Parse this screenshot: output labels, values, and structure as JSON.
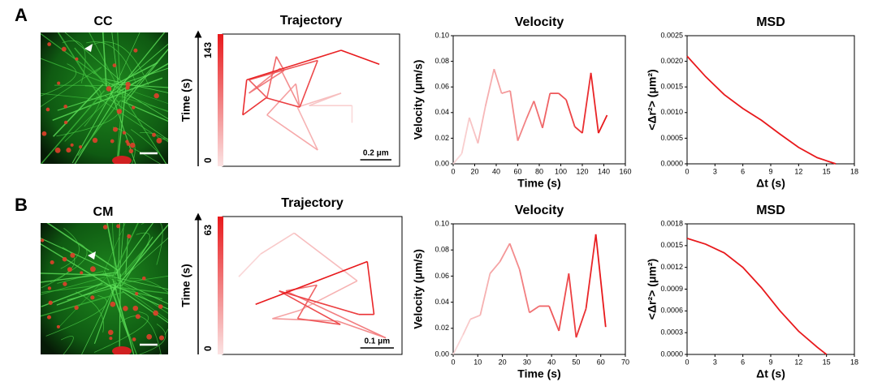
{
  "panels": [
    {
      "label": "A",
      "image_label": "CC"
    },
    {
      "label": "B",
      "image_label": "CM"
    }
  ],
  "chart_data": [
    {
      "type": "trajectory",
      "title": "Trajectory",
      "x": [
        0.76,
        0.76,
        0.485,
        0.69,
        0.41,
        0.54,
        0.215,
        0.4,
        0.425,
        0.3,
        0.1,
        0.325,
        0.275,
        0.215,
        0.1,
        0.54,
        0.425,
        0.21,
        0.06,
        0.085,
        0.69,
        0.935
      ],
      "y": [
        0.275,
        0.385,
        0.385,
        0.465,
        0.375,
        0.1,
        0.325,
        0.525,
        0.375,
        0.625,
        0.465,
        0.61,
        0.7,
        0.435,
        0.55,
        0.675,
        0.375,
        0.435,
        0.325,
        0.55,
        0.74,
        0.65
      ],
      "colormap": [
        "#fbe3e3",
        "#e8191c"
      ],
      "colorbar": {
        "label": "Time (s)",
        "lim": [
          0,
          143
        ],
        "ticks": [
          0,
          143
        ]
      },
      "scale_bar": {
        "label": "0.2 μm",
        "length": 0.2
      }
    },
    {
      "type": "line",
      "title": "Velocity",
      "x_label": "Time (s)",
      "y_label": "Velocity (μm/s)",
      "x": [
        0,
        8,
        15,
        23,
        30,
        38,
        45,
        53,
        60,
        68,
        75,
        83,
        90,
        98,
        105,
        113,
        120,
        128,
        135,
        143
      ],
      "values": [
        0,
        0.008,
        0.036,
        0.016,
        0.045,
        0.074,
        0.055,
        0.057,
        0.018,
        0.035,
        0.049,
        0.028,
        0.055,
        0.055,
        0.05,
        0.029,
        0.024,
        0.071,
        0.024,
        0.038
      ],
      "colormap": [
        "#fbe3e3",
        "#e8191c"
      ],
      "xlim": [
        0,
        160
      ],
      "xticks": [
        0,
        20,
        40,
        60,
        80,
        100,
        120,
        140,
        160
      ],
      "ylim": [
        0,
        0.1
      ],
      "yticks": [
        {
          "value": 0,
          "label": "0.00"
        },
        {
          "value": 0.02,
          "label": "0.02"
        },
        {
          "value": 0.04,
          "label": "0.04"
        },
        {
          "value": 0.06,
          "label": "0.06"
        },
        {
          "value": 0.08,
          "label": "0.08"
        },
        {
          "value": 0.1,
          "label": "0.10"
        }
      ]
    },
    {
      "type": "line",
      "title": "MSD",
      "x_label": "Δt (s)",
      "y_label": "<Δr²> (μm²)",
      "x": [
        0,
        2,
        4,
        6,
        8,
        10,
        12,
        14,
        16
      ],
      "values": [
        0.0021,
        0.0017,
        0.00135,
        0.00108,
        0.00085,
        0.00058,
        0.00032,
        0.00012,
        0
      ],
      "color": "#e8191c",
      "xlim": [
        0,
        18
      ],
      "xticks": [
        0,
        3,
        6,
        9,
        12,
        15,
        18
      ],
      "ylim": [
        0,
        0.0025
      ],
      "yticks": [
        {
          "value": 0,
          "label": "0.0000"
        },
        {
          "value": 0.0005,
          "label": "0.0005"
        },
        {
          "value": 0.001,
          "label": "0.0010"
        },
        {
          "value": 0.0015,
          "label": "0.0015"
        },
        {
          "value": 0.002,
          "label": "0.0020"
        },
        {
          "value": 0.0025,
          "label": "0.0025"
        }
      ]
    },
    {
      "type": "trajectory",
      "title": "Trajectory",
      "x": [
        0.035,
        0.1,
        0.2,
        0.3875,
        0.2175,
        0.135,
        0.33,
        0.4725,
        0.175,
        0.2675,
        0.21,
        0.3375,
        0.155,
        0.3925,
        0.4375,
        0.4175,
        0.085
      ],
      "y": [
        0.23,
        0.2975,
        0.36,
        0.2175,
        0.13,
        0.105,
        0.0975,
        0.0475,
        0.1875,
        0.205,
        0.105,
        0.0875,
        0.1875,
        0.1175,
        0.1175,
        0.275,
        0.1475
      ],
      "colormap": [
        "#fbe3e3",
        "#e8191c"
      ],
      "colorbar": {
        "label": "Time (s)",
        "lim": [
          0,
          63
        ],
        "ticks": [
          0,
          63
        ]
      },
      "scale_bar": {
        "label": "0.1 μm",
        "length": 0.1
      }
    },
    {
      "type": "line",
      "title": "Velocity",
      "x_label": "Time (s)",
      "y_label": "Velocity (μm/s)",
      "x": [
        0,
        4,
        7,
        11,
        15,
        19,
        23,
        27,
        31,
        35,
        39,
        43,
        47,
        50,
        54,
        58,
        62
      ],
      "values": [
        0,
        0.015,
        0.027,
        0.03,
        0.062,
        0.071,
        0.085,
        0.065,
        0.032,
        0.037,
        0.037,
        0.018,
        0.062,
        0.013,
        0.035,
        0.092,
        0.021
      ],
      "colormap": [
        "#fbe3e3",
        "#e8191c"
      ],
      "xlim": [
        0,
        70
      ],
      "xticks": [
        0,
        10,
        20,
        30,
        40,
        50,
        60,
        70
      ],
      "ylim": [
        0,
        0.1
      ],
      "yticks": [
        {
          "value": 0,
          "label": "0.00"
        },
        {
          "value": 0.02,
          "label": "0.02"
        },
        {
          "value": 0.04,
          "label": "0.04"
        },
        {
          "value": 0.06,
          "label": "0.06"
        },
        {
          "value": 0.08,
          "label": "0.08"
        },
        {
          "value": 0.1,
          "label": "0.10"
        }
      ]
    },
    {
      "type": "line",
      "title": "MSD",
      "x_label": "Δt (s)",
      "y_label": "<Δr²> (μm²)",
      "x": [
        0,
        2,
        4,
        6,
        8,
        10,
        12,
        14,
        15
      ],
      "values": [
        0.0016,
        0.00152,
        0.0014,
        0.0012,
        0.00092,
        0.0006,
        0.00032,
        0.0001,
        0
      ],
      "color": "#e8191c",
      "xlim": [
        0,
        18
      ],
      "xticks": [
        0,
        3,
        6,
        9,
        12,
        15,
        18
      ],
      "ylim": [
        0,
        0.0018
      ],
      "yticks": [
        {
          "value": 0,
          "label": "0.0000"
        },
        {
          "value": 0.0003,
          "label": "0.0003"
        },
        {
          "value": 0.0006,
          "label": "0.0006"
        },
        {
          "value": 0.0009,
          "label": "0.0009"
        },
        {
          "value": 0.0012,
          "label": "0.0012"
        },
        {
          "value": 0.0015,
          "label": "0.0015"
        },
        {
          "value": 0.0018,
          "label": "0.0018"
        }
      ]
    }
  ]
}
